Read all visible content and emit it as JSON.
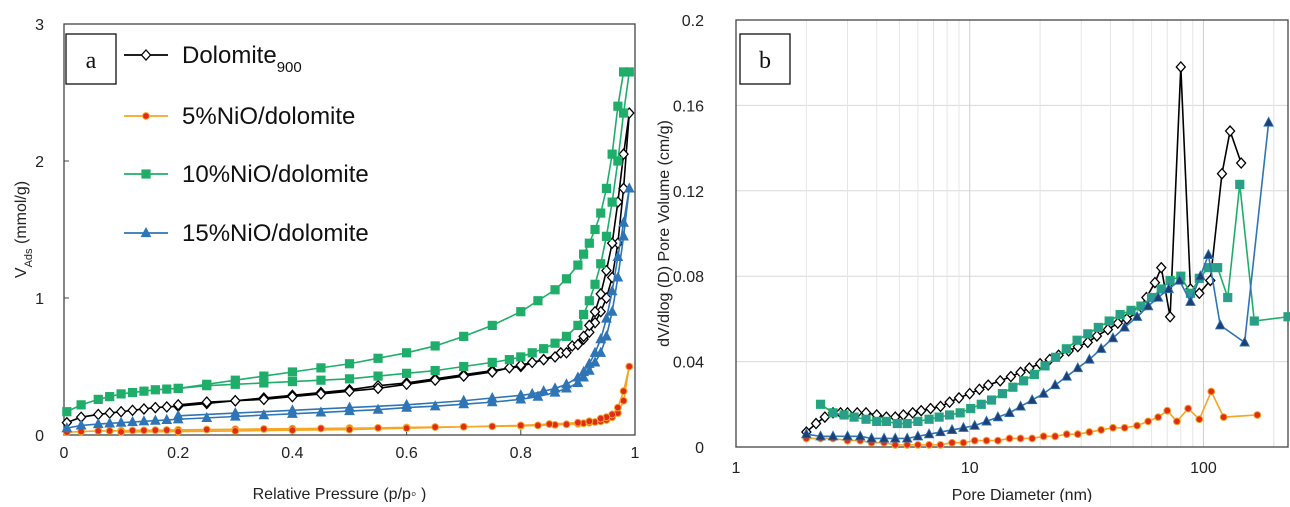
{
  "chart_data": [
    {
      "type": "line",
      "panel_label": "a",
      "xlabel": "Relative Pressure (p/p◦ )",
      "ylabel": "V",
      "ylabel_sub": "Ads",
      "ylabel_suffix": " (mmol/g)",
      "xlim": [
        0,
        1
      ],
      "ylim": [
        0,
        3
      ],
      "xticks": [
        0,
        0.2,
        0.4,
        0.6,
        0.8,
        1
      ],
      "xtick_labels": [
        "0",
        "0.2",
        "0.4",
        "0.6",
        "0.8",
        "1"
      ],
      "yticks": [
        0,
        1,
        2,
        3
      ],
      "ytick_labels": [
        "0",
        "1",
        "2",
        "3"
      ],
      "grid": false,
      "legend_position": "top-left",
      "series": [
        {
          "name": "Dolomite",
          "name_sub": "900",
          "color": "#000000",
          "marker": "diamond-open",
          "x": [
            0.005,
            0.03,
            0.06,
            0.08,
            0.1,
            0.12,
            0.14,
            0.16,
            0.18,
            0.2,
            0.25,
            0.3,
            0.35,
            0.4,
            0.45,
            0.5,
            0.55,
            0.6,
            0.65,
            0.7,
            0.75,
            0.8,
            0.84,
            0.87,
            0.89,
            0.91,
            0.92,
            0.93,
            0.94,
            0.95,
            0.96,
            0.97,
            0.98,
            0.99,
            0.98,
            0.97,
            0.96,
            0.95,
            0.94,
            0.93,
            0.92,
            0.91,
            0.9,
            0.88,
            0.86,
            0.84,
            0.82,
            0.8,
            0.78,
            0.75,
            0.7,
            0.65,
            0.6,
            0.55,
            0.5,
            0.45,
            0.4,
            0.35,
            0.3,
            0.25,
            0.2
          ],
          "y": [
            0.09,
            0.13,
            0.15,
            0.16,
            0.17,
            0.18,
            0.19,
            0.2,
            0.205,
            0.21,
            0.23,
            0.25,
            0.27,
            0.29,
            0.31,
            0.33,
            0.36,
            0.38,
            0.41,
            0.44,
            0.47,
            0.5,
            0.55,
            0.6,
            0.65,
            0.7,
            0.75,
            0.82,
            0.9,
            1.0,
            1.15,
            1.4,
            1.8,
            2.35,
            2.05,
            1.7,
            1.4,
            1.2,
            1.03,
            0.9,
            0.8,
            0.72,
            0.66,
            0.6,
            0.57,
            0.55,
            0.53,
            0.51,
            0.49,
            0.46,
            0.43,
            0.4,
            0.37,
            0.34,
            0.32,
            0.3,
            0.28,
            0.26,
            0.25,
            0.24,
            0.22
          ]
        },
        {
          "name": "5%NiO/dolomite",
          "color": "#f5a623",
          "fill": "#e02b1b",
          "marker": "circle",
          "x": [
            0.005,
            0.03,
            0.06,
            0.08,
            0.1,
            0.12,
            0.14,
            0.16,
            0.18,
            0.2,
            0.25,
            0.3,
            0.35,
            0.4,
            0.45,
            0.5,
            0.55,
            0.6,
            0.65,
            0.7,
            0.75,
            0.8,
            0.83,
            0.86,
            0.88,
            0.9,
            0.91,
            0.92,
            0.93,
            0.94,
            0.95,
            0.96,
            0.97,
            0.98,
            0.99,
            0.98,
            0.97,
            0.96,
            0.95,
            0.94,
            0.92,
            0.9,
            0.85,
            0.8,
            0.7,
            0.6,
            0.5,
            0.4,
            0.3,
            0.2,
            0.1
          ],
          "y": [
            0.02,
            0.025,
            0.03,
            0.03,
            0.032,
            0.033,
            0.034,
            0.035,
            0.036,
            0.037,
            0.04,
            0.042,
            0.044,
            0.046,
            0.048,
            0.05,
            0.052,
            0.055,
            0.058,
            0.06,
            0.063,
            0.066,
            0.07,
            0.074,
            0.078,
            0.082,
            0.086,
            0.09,
            0.095,
            0.1,
            0.11,
            0.13,
            0.16,
            0.25,
            0.5,
            0.32,
            0.2,
            0.15,
            0.13,
            0.12,
            0.1,
            0.09,
            0.08,
            0.07,
            0.06,
            0.05,
            0.04,
            0.035,
            0.03,
            0.025,
            0.022
          ]
        },
        {
          "name": "10%NiO/dolomite",
          "color": "#1fae6a",
          "marker": "square",
          "x": [
            0.005,
            0.03,
            0.06,
            0.08,
            0.1,
            0.12,
            0.14,
            0.16,
            0.18,
            0.2,
            0.25,
            0.3,
            0.35,
            0.4,
            0.45,
            0.5,
            0.55,
            0.6,
            0.65,
            0.7,
            0.75,
            0.8,
            0.83,
            0.86,
            0.88,
            0.9,
            0.91,
            0.92,
            0.93,
            0.94,
            0.95,
            0.96,
            0.97,
            0.98,
            0.99,
            0.98,
            0.97,
            0.96,
            0.95,
            0.94,
            0.93,
            0.92,
            0.91,
            0.9,
            0.88,
            0.86,
            0.84,
            0.82,
            0.8,
            0.78,
            0.75,
            0.7,
            0.65,
            0.6,
            0.55,
            0.5,
            0.45,
            0.4,
            0.35,
            0.3,
            0.25,
            0.2
          ],
          "y": [
            0.17,
            0.22,
            0.26,
            0.28,
            0.3,
            0.31,
            0.32,
            0.33,
            0.335,
            0.34,
            0.37,
            0.4,
            0.43,
            0.46,
            0.49,
            0.52,
            0.56,
            0.6,
            0.65,
            0.72,
            0.8,
            0.9,
            0.98,
            1.06,
            1.14,
            1.24,
            1.32,
            1.4,
            1.5,
            1.62,
            1.8,
            2.05,
            2.4,
            2.65,
            2.65,
            2.35,
            2.0,
            1.7,
            1.45,
            1.25,
            1.1,
            0.98,
            0.88,
            0.8,
            0.72,
            0.67,
            0.63,
            0.6,
            0.57,
            0.55,
            0.53,
            0.5,
            0.47,
            0.45,
            0.43,
            0.41,
            0.4,
            0.39,
            0.38,
            0.37,
            0.36,
            0.34
          ]
        },
        {
          "name": "15%NiO/dolomite",
          "color": "#2e75b6",
          "marker": "triangle",
          "x": [
            0.005,
            0.03,
            0.06,
            0.08,
            0.1,
            0.12,
            0.14,
            0.16,
            0.18,
            0.2,
            0.25,
            0.3,
            0.35,
            0.4,
            0.45,
            0.5,
            0.55,
            0.6,
            0.65,
            0.7,
            0.75,
            0.8,
            0.83,
            0.86,
            0.88,
            0.9,
            0.91,
            0.92,
            0.93,
            0.94,
            0.95,
            0.96,
            0.97,
            0.98,
            0.99,
            0.98,
            0.97,
            0.96,
            0.95,
            0.94,
            0.93,
            0.92,
            0.91,
            0.9,
            0.88,
            0.86,
            0.84,
            0.82,
            0.8,
            0.75,
            0.7,
            0.6,
            0.5,
            0.4,
            0.3,
            0.2
          ],
          "y": [
            0.05,
            0.07,
            0.08,
            0.085,
            0.09,
            0.095,
            0.1,
            0.105,
            0.11,
            0.115,
            0.125,
            0.135,
            0.145,
            0.155,
            0.165,
            0.175,
            0.185,
            0.2,
            0.21,
            0.225,
            0.24,
            0.26,
            0.28,
            0.31,
            0.34,
            0.38,
            0.42,
            0.47,
            0.53,
            0.6,
            0.72,
            0.9,
            1.15,
            1.45,
            1.8,
            1.55,
            1.3,
            1.05,
            0.85,
            0.7,
            0.6,
            0.52,
            0.46,
            0.42,
            0.37,
            0.34,
            0.32,
            0.3,
            0.29,
            0.27,
            0.25,
            0.22,
            0.2,
            0.18,
            0.16,
            0.14
          ]
        }
      ]
    },
    {
      "type": "line",
      "panel_label": "b",
      "xlabel": "Pore Diameter (nm)",
      "ylabel": "dV/dlog (D) Pore Volume (cm/g)",
      "x_scale": "log",
      "xlim": [
        1,
        230
      ],
      "ylim": [
        0,
        0.2
      ],
      "xticks": [
        1,
        10,
        100
      ],
      "xtick_labels": [
        "1",
        "10",
        "100"
      ],
      "yticks": [
        0,
        0.04,
        0.08,
        0.12,
        0.16,
        0.2
      ],
      "ytick_labels": [
        "0",
        "0.04",
        "0.08",
        "0.12",
        "0.16",
        "0.2"
      ],
      "grid": true,
      "series": [
        {
          "color": "#000000",
          "marker": "diamond-open",
          "x": [
            2.0,
            2.2,
            2.4,
            2.6,
            2.8,
            3.0,
            3.3,
            3.6,
            4.0,
            4.4,
            4.8,
            5.2,
            5.7,
            6.2,
            6.8,
            7.5,
            8.2,
            9.0,
            10.0,
            11.0,
            12.0,
            13.5,
            15.0,
            16.5,
            18.0,
            20.0,
            22.0,
            24.0,
            26.5,
            29.0,
            32.0,
            35.0,
            39.0,
            43.0,
            47.0,
            52.0,
            57.0,
            62.0,
            66.0,
            72.0,
            80.0,
            88.0,
            96.0,
            107.0,
            120.0,
            130.0,
            145.0
          ],
          "y": [
            0.007,
            0.011,
            0.014,
            0.016,
            0.016,
            0.016,
            0.016,
            0.016,
            0.015,
            0.014,
            0.014,
            0.015,
            0.016,
            0.017,
            0.018,
            0.019,
            0.021,
            0.023,
            0.025,
            0.027,
            0.029,
            0.031,
            0.033,
            0.035,
            0.037,
            0.039,
            0.041,
            0.043,
            0.045,
            0.047,
            0.049,
            0.052,
            0.055,
            0.058,
            0.06,
            0.063,
            0.07,
            0.077,
            0.084,
            0.061,
            0.178,
            0.074,
            0.072,
            0.078,
            0.128,
            0.148,
            0.133
          ]
        },
        {
          "color": "#f5a623",
          "fill": "#e02b1b",
          "marker": "circle",
          "x": [
            2.0,
            2.3,
            2.6,
            3.0,
            3.4,
            3.8,
            4.3,
            4.8,
            5.4,
            6.0,
            6.7,
            7.5,
            8.4,
            9.4,
            10.5,
            11.8,
            13.2,
            14.8,
            16.5,
            18.5,
            20.7,
            23.2,
            26.0,
            29.0,
            32.5,
            36.5,
            41.0,
            46.0,
            52.0,
            58.0,
            64.0,
            70.0,
            77.0,
            86.0,
            96.0,
            108.0,
            122.0,
            170.0
          ],
          "y": [
            0.004,
            0.004,
            0.004,
            0.003,
            0.003,
            0.002,
            0.002,
            0.001,
            0.001,
            0.001,
            0.001,
            0.001,
            0.002,
            0.002,
            0.003,
            0.003,
            0.003,
            0.004,
            0.004,
            0.004,
            0.005,
            0.005,
            0.006,
            0.006,
            0.007,
            0.008,
            0.009,
            0.009,
            0.01,
            0.012,
            0.014,
            0.017,
            0.012,
            0.018,
            0.013,
            0.026,
            0.014,
            0.015
          ]
        },
        {
          "color": "#1fae6a",
          "fill": "#2a9d8f",
          "marker": "square",
          "x": [
            2.3,
            2.6,
            2.9,
            3.2,
            3.6,
            4.0,
            4.4,
            4.9,
            5.4,
            6.0,
            6.7,
            7.4,
            8.2,
            9.1,
            10.1,
            11.2,
            12.4,
            13.8,
            15.3,
            17.0,
            18.9,
            21.0,
            23.3,
            25.9,
            28.8,
            32.0,
            35.5,
            39.5,
            44.0,
            49.0,
            54.0,
            60.0,
            66.0,
            72.0,
            80.0,
            88.0,
            96.0,
            105.0,
            115.0,
            127.0,
            143.0,
            165.0,
            230.0
          ],
          "y": [
            0.02,
            0.016,
            0.015,
            0.014,
            0.013,
            0.012,
            0.012,
            0.011,
            0.011,
            0.012,
            0.013,
            0.014,
            0.015,
            0.016,
            0.018,
            0.02,
            0.022,
            0.025,
            0.028,
            0.031,
            0.034,
            0.038,
            0.042,
            0.046,
            0.05,
            0.053,
            0.056,
            0.059,
            0.062,
            0.064,
            0.066,
            0.07,
            0.074,
            0.078,
            0.08,
            0.072,
            0.079,
            0.084,
            0.084,
            0.07,
            0.123,
            0.059,
            0.061
          ]
        },
        {
          "color": "#2e75b6",
          "fill": "#1f3f73",
          "marker": "triangle",
          "x": [
            2.0,
            2.3,
            2.6,
            3.0,
            3.4,
            3.8,
            4.3,
            4.8,
            5.4,
            6.0,
            6.7,
            7.5,
            8.4,
            9.4,
            10.5,
            11.8,
            13.2,
            14.8,
            16.5,
            18.5,
            20.7,
            23.2,
            26.0,
            29.0,
            32.5,
            36.5,
            41.0,
            46.0,
            52.0,
            58.0,
            64.0,
            71.0,
            79.0,
            88.0,
            97.0,
            105.0,
            118.0,
            150.0,
            190.0
          ],
          "y": [
            0.006,
            0.005,
            0.005,
            0.005,
            0.005,
            0.004,
            0.004,
            0.004,
            0.004,
            0.005,
            0.006,
            0.007,
            0.008,
            0.009,
            0.01,
            0.012,
            0.014,
            0.016,
            0.019,
            0.022,
            0.025,
            0.029,
            0.033,
            0.037,
            0.041,
            0.046,
            0.051,
            0.056,
            0.061,
            0.066,
            0.07,
            0.074,
            0.078,
            0.068,
            0.08,
            0.09,
            0.057,
            0.049,
            0.152
          ]
        }
      ]
    }
  ]
}
